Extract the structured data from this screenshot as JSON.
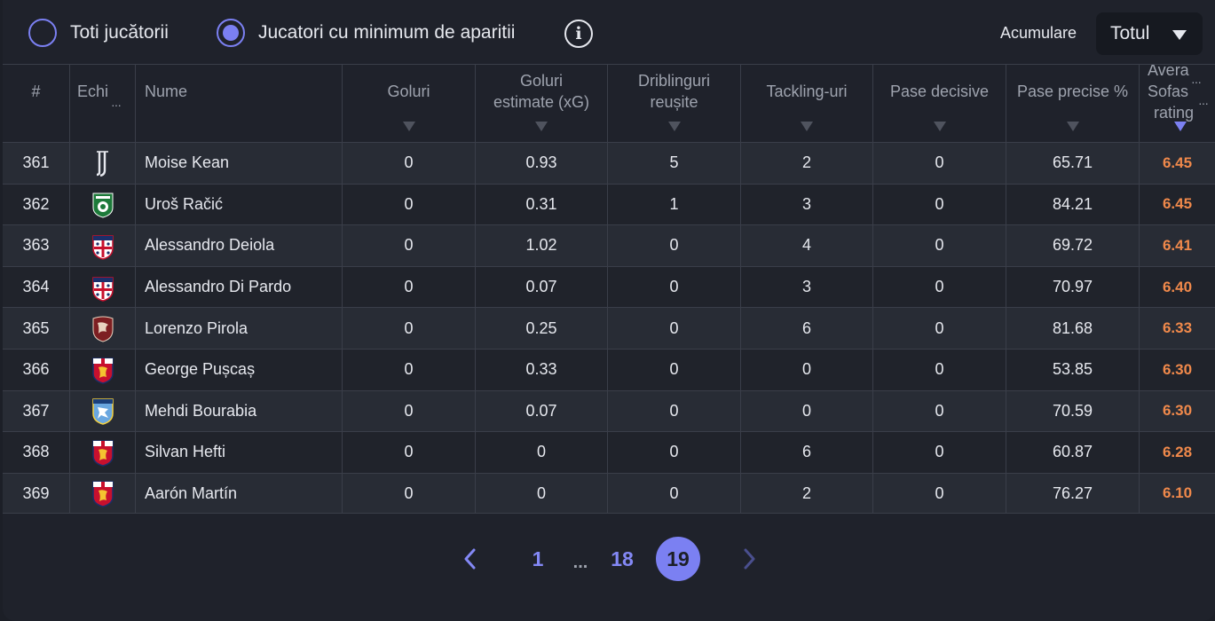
{
  "filters": {
    "all_players_label": "Toti jucătorii",
    "min_appearances_label": "Jucatori cu minimum de aparitii",
    "info_symbol": "i",
    "accumulation_label": "Acumulare",
    "accumulation_value": "Totul"
  },
  "table": {
    "headers": {
      "rank": "#",
      "team": "Echi",
      "name": "Nume",
      "goals": "Goluri",
      "xg_line1": "Goluri",
      "xg_line2": "estimate (xG)",
      "dribbles_line1": "Driblinguri",
      "dribbles_line2": "reușite",
      "tackles": "Tackling-uri",
      "assists": "Pase decisive",
      "pass_accuracy": "Pase precise %",
      "rating_line1": "Avera",
      "rating_line2": "Sofas",
      "rating_line3": "rating"
    },
    "sorted_column": "rating",
    "rows": [
      {
        "rank": "361",
        "team_icon": "juventus-crest-icon",
        "name": "Moise Kean",
        "goals": "0",
        "xg": "0.93",
        "dribbles": "5",
        "tackles": "2",
        "assists": "0",
        "pass_accuracy": "65.71",
        "rating": "6.45"
      },
      {
        "rank": "362",
        "team_icon": "sassuolo-crest-icon",
        "name": "Uroš Račić",
        "goals": "0",
        "xg": "0.31",
        "dribbles": "1",
        "tackles": "3",
        "assists": "0",
        "pass_accuracy": "84.21",
        "rating": "6.45"
      },
      {
        "rank": "363",
        "team_icon": "cagliari-crest-icon",
        "name": "Alessandro Deiola",
        "goals": "0",
        "xg": "1.02",
        "dribbles": "0",
        "tackles": "4",
        "assists": "0",
        "pass_accuracy": "69.72",
        "rating": "6.41"
      },
      {
        "rank": "364",
        "team_icon": "cagliari-crest-icon",
        "name": "Alessandro Di Pardo",
        "goals": "0",
        "xg": "0.07",
        "dribbles": "0",
        "tackles": "3",
        "assists": "0",
        "pass_accuracy": "70.97",
        "rating": "6.40"
      },
      {
        "rank": "365",
        "team_icon": "salernitana-crest-icon",
        "name": "Lorenzo Pirola",
        "goals": "0",
        "xg": "0.25",
        "dribbles": "0",
        "tackles": "6",
        "assists": "0",
        "pass_accuracy": "81.68",
        "rating": "6.33"
      },
      {
        "rank": "366",
        "team_icon": "genoa-crest-icon",
        "name": "George Pușcaș",
        "goals": "0",
        "xg": "0.33",
        "dribbles": "0",
        "tackles": "0",
        "assists": "0",
        "pass_accuracy": "53.85",
        "rating": "6.30"
      },
      {
        "rank": "367",
        "team_icon": "frosinone-crest-icon",
        "name": "Mehdi Bourabia",
        "goals": "0",
        "xg": "0.07",
        "dribbles": "0",
        "tackles": "0",
        "assists": "0",
        "pass_accuracy": "70.59",
        "rating": "6.30"
      },
      {
        "rank": "368",
        "team_icon": "genoa-crest-icon",
        "name": "Silvan Hefti",
        "goals": "0",
        "xg": "0",
        "dribbles": "0",
        "tackles": "6",
        "assists": "0",
        "pass_accuracy": "60.87",
        "rating": "6.28"
      },
      {
        "rank": "369",
        "team_icon": "genoa-crest-icon",
        "name": "Aarón Martín",
        "goals": "0",
        "xg": "0",
        "dribbles": "0",
        "tackles": "2",
        "assists": "0",
        "pass_accuracy": "76.27",
        "rating": "6.10"
      }
    ]
  },
  "pagination": {
    "first_page": "1",
    "ellipsis": "...",
    "prev_page": "18",
    "current_page": "19"
  },
  "colors": {
    "accent": "#7b80f2",
    "rating": "#f0894b",
    "background": "#1f222b"
  }
}
